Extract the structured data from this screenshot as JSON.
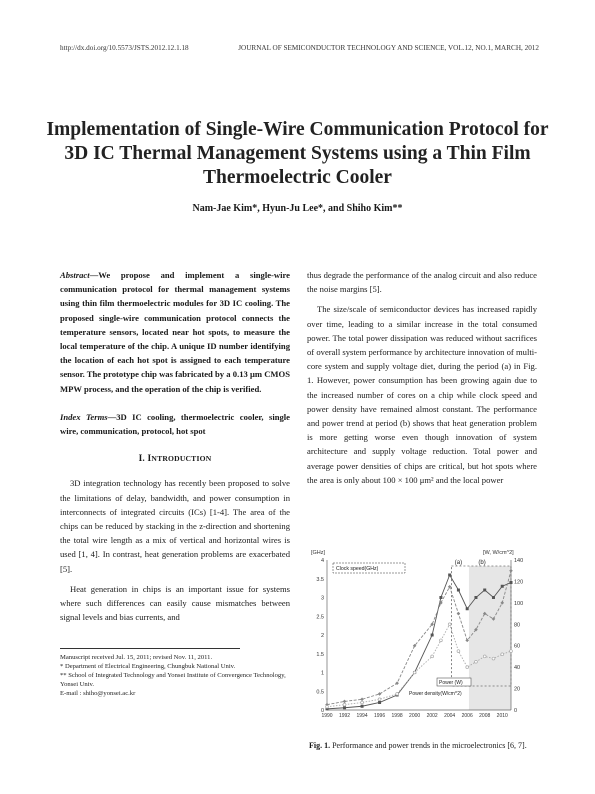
{
  "header": {
    "doi": "http://dx.doi.org/10.5573/JSTS.2012.12.1.18",
    "journal": "JOURNAL OF SEMICONDUCTOR TECHNOLOGY AND SCIENCE, VOL.12, NO.1, MARCH, 2012"
  },
  "title": "Implementation of Single-Wire Communication Protocol for 3D IC Thermal Management Systems using a Thin Film Thermoelectric Cooler",
  "authors": "Nam-Jae Kim*, Hyun-Ju Lee*, and Shiho Kim**",
  "abstract": {
    "label": "Abstract",
    "text": "—We propose and implement a single-wire communication protocol for thermal management systems using thin film thermoelectric modules for 3D IC cooling. The proposed single-wire communication protocol connects the temperature sensors, located near hot spots, to measure the local temperature of the chip. A unique ID number identifying the location of each hot spot is assigned to each temperature sensor. The prototype chip was fabricated by a 0.13 μm CMOS MPW process, and the operation of the chip is verified."
  },
  "index_terms": {
    "label": "Index Terms",
    "text": "—3D IC cooling, thermoelectric cooler, single wire, communication, protocol, hot spot"
  },
  "section1": {
    "number": "I.",
    "first_letter": "I",
    "rest": "NTRODUCTION"
  },
  "left_paragraphs": [
    "3D integration technology has recently been proposed to solve the limitations of delay, bandwidth, and power consumption in interconnects of integrated circuits (ICs) [1-4]. The area of the chips can be reduced by stacking in the z-direction and shortening the total wire length as a mix of vertical and horizontal wires is used [1, 4]. In contrast, heat generation problems are exacerbated [5].",
    "Heat generation in chips is an important issue for systems where such differences can easily cause mismatches between signal levels and bias currents, and"
  ],
  "right_paragraphs": [
    "thus degrade the performance of the analog circuit and also reduce the noise margins [5].",
    "The size/scale of semiconductor devices has increased rapidly over time, leading to a similar increase in the total consumed power. The total power dissipation was reduced without sacrifices of overall system performance by architecture innovation of multi-core system and supply voltage diet, during the period (a) in Fig. 1. However, power consumption has been growing again due to the increased number of cores on a chip while clock speed and power density have remained almost constant. The performance and power trend at period (b) shows that heat generation problem is more getting worse even though innovation of system architecture and supply voltage reduction. Total power and average power densities of chips are critical, but hot spots where the area is only about 100 × 100 μm² and the local power"
  ],
  "footnotes": [
    "Manuscript received Jul. 15, 2011; revised Nov. 11, 2011.",
    "* Department of Electrical Engineering, Chungbuk National Univ.",
    "** School of Integrated Technology and Yonsei Institute of Convergence Technology, Yonsei Univ.",
    "E-mail : shiho@yonsei.ac.kr"
  ],
  "figure": {
    "caption_label": "Fig. 1.",
    "caption_text": " Performance and power trends in the microelectronics [6, 7].",
    "left_unit": "[GHz]",
    "right_unit": "[W, W/cm^2]",
    "legend_clock": "Clock speed(GHz)",
    "legend_power": "Power (W)",
    "legend_density": "Power density(W/cm^2)",
    "period_a": "(a)",
    "period_b": "(b)"
  },
  "chart_data": {
    "type": "line",
    "x": [
      1990,
      1992,
      1994,
      1996,
      1998,
      2000,
      2002,
      2004,
      2006,
      2008,
      2010
    ],
    "xticks": [
      "1990",
      "1992",
      "1994",
      "1996",
      "1998",
      "2000",
      "2002",
      "2004",
      "2006",
      "2008",
      "2010"
    ],
    "y_left_ticks": [
      "0",
      "0.5",
      "1",
      "1.5",
      "2",
      "2.5",
      "3",
      "3.5",
      "4"
    ],
    "y_right_ticks": [
      "0",
      "20",
      "40",
      "60",
      "80",
      "100",
      "120",
      "140"
    ],
    "ylim_left": [
      0,
      4
    ],
    "ylim_right": [
      0,
      140
    ],
    "series": [
      {
        "name": "Clock speed(GHz)",
        "axis": "left",
        "color": "#555555",
        "marker": "square",
        "x": [
          1990,
          1992,
          1994,
          1996,
          1998,
          2000,
          2002,
          2003,
          2004,
          2005,
          2006,
          2007,
          2008,
          2009,
          2010,
          2011
        ],
        "values": [
          0.03,
          0.06,
          0.1,
          0.2,
          0.4,
          1.0,
          2.0,
          3.0,
          3.6,
          3.2,
          2.7,
          3.0,
          3.2,
          3.0,
          3.3,
          3.4
        ]
      },
      {
        "name": "Power (W)",
        "axis": "right",
        "color": "#888888",
        "marker": "diamond",
        "x": [
          1990,
          1992,
          1994,
          1996,
          1998,
          2000,
          2002,
          2003,
          2004,
          2005,
          2006,
          2007,
          2008,
          2009,
          2010,
          2011
        ],
        "values": [
          5,
          8,
          10,
          15,
          25,
          60,
          80,
          100,
          115,
          90,
          65,
          75,
          90,
          85,
          100,
          130
        ]
      },
      {
        "name": "Power density(W/cm^2)",
        "axis": "right",
        "color": "#aaaaaa",
        "marker": "circle",
        "x": [
          1990,
          1992,
          1994,
          1996,
          1998,
          2000,
          2002,
          2003,
          2004,
          2005,
          2006,
          2007,
          2008,
          2009,
          2010,
          2011
        ],
        "values": [
          3,
          5,
          7,
          10,
          15,
          35,
          50,
          65,
          80,
          55,
          40,
          45,
          50,
          48,
          52,
          55
        ]
      }
    ],
    "grid": false
  },
  "colors": {
    "text": "#1a1a1a",
    "period_b_fill": "#e6e6e6",
    "axis": "#666666"
  }
}
